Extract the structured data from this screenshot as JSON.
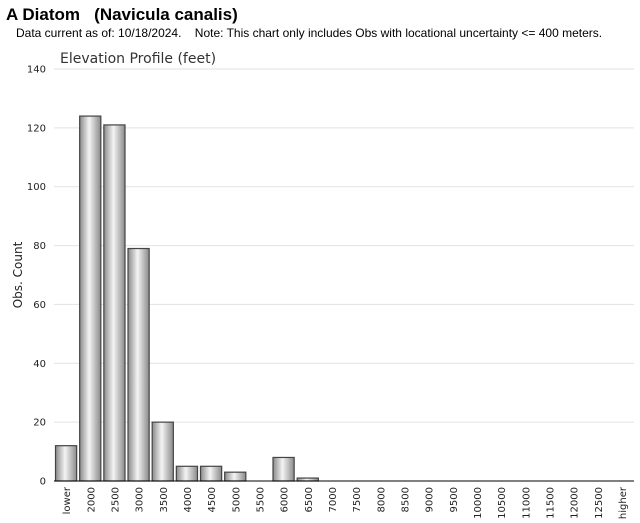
{
  "header": {
    "title": "A Diatom   (Navicula canalis)",
    "note": "Data current as of: 10/18/2024.    Note: This chart only includes Obs with locational uncertainty <= 400 meters."
  },
  "chart_data": {
    "type": "bar",
    "title": "Elevation Profile (feet)",
    "xlabel": "",
    "ylabel": "Obs. Count",
    "ylim": [
      0,
      140
    ],
    "yticks": [
      0,
      20,
      40,
      60,
      80,
      100,
      120,
      140
    ],
    "grid": true,
    "categories": [
      "lower",
      "2000",
      "2500",
      "3000",
      "3500",
      "4000",
      "4500",
      "5000",
      "5500",
      "6000",
      "6500",
      "7000",
      "7500",
      "8000",
      "8500",
      "9000",
      "9500",
      "10000",
      "10500",
      "11000",
      "11500",
      "12000",
      "12500",
      "higher"
    ],
    "values": [
      12,
      124,
      121,
      79,
      20,
      5,
      5,
      3,
      0,
      8,
      1,
      0,
      0,
      0,
      0,
      0,
      0,
      0,
      0,
      0,
      0,
      0,
      0,
      0
    ],
    "colors": {
      "bar_edge": "#444444",
      "bar_light": "#f4f4f4",
      "bar_dark": "#8a8a8a",
      "grid": "#e2e2e2",
      "axis": "#000000"
    }
  }
}
